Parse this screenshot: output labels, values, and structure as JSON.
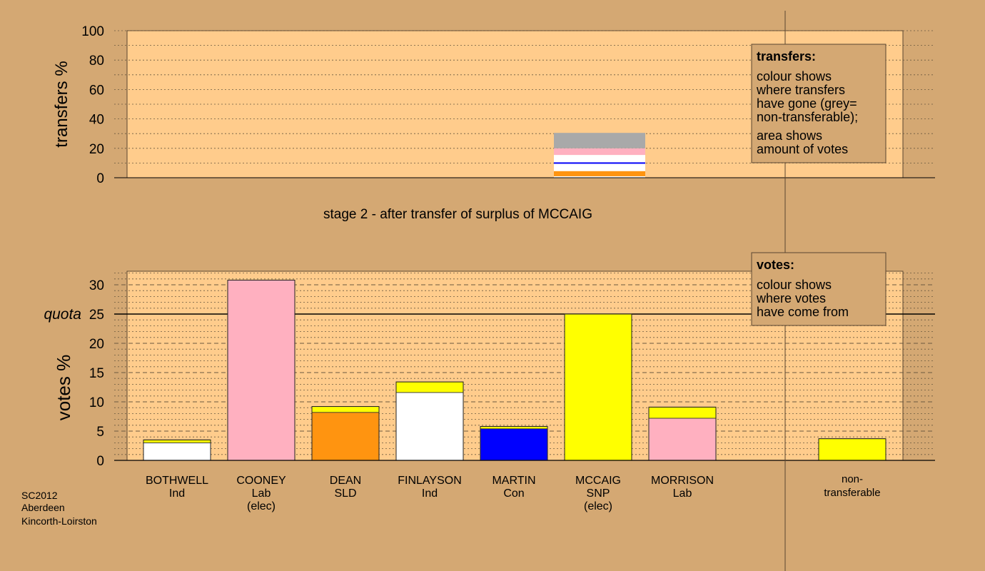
{
  "colors": {
    "background": "#d4a873",
    "plot_bg": "#ffcc8c",
    "grey": "#a9a9a9",
    "pink": "#ffb0c0",
    "white": "#ffffff",
    "blue": "#0000ff",
    "orange": "#ff9410",
    "yellow": "#ffff00"
  },
  "chart_data": [
    {
      "type": "bar",
      "ylabel": "transfers %",
      "ylim": [
        0,
        100
      ],
      "yticks": [
        0,
        20,
        40,
        60,
        80,
        100
      ],
      "stage_label": "stage 2 - after transfer of surplus of MCCAIG",
      "transfer_from": "MCCAIG",
      "stack_order_bottom_up": [
        "white",
        "orange",
        "white",
        "blue",
        "white",
        "pink",
        "grey"
      ],
      "segments": [
        {
          "color": "white",
          "value": 1.0
        },
        {
          "color": "orange",
          "value": 3.5
        },
        {
          "color": "white",
          "value": 5.0
        },
        {
          "color": "blue",
          "value": 1.0
        },
        {
          "color": "white",
          "value": 5.0
        },
        {
          "color": "pink",
          "value": 4.5
        },
        {
          "color": "grey",
          "value": 10.5
        }
      ],
      "legend": {
        "title": "transfers:",
        "lines1": [
          "colour shows",
          "where transfers",
          "have gone (grey=",
          "non-transferable);"
        ],
        "lines2": [
          "area shows",
          "amount of votes"
        ]
      }
    },
    {
      "type": "bar",
      "ylabel": "votes %",
      "ylim": [
        0,
        32
      ],
      "yticks": [
        0,
        5,
        10,
        15,
        20,
        25,
        30
      ],
      "quota": 25,
      "quota_label": "quota",
      "categories": [
        {
          "name": "BOTHWELL",
          "party": "Ind",
          "note": "",
          "segments": [
            {
              "color": "white",
              "value": 3.0
            },
            {
              "color": "yellow",
              "value": 0.5
            }
          ]
        },
        {
          "name": "COONEY",
          "party": "Lab",
          "note": "(elec)",
          "segments": [
            {
              "color": "pink",
              "value": 30.8
            }
          ]
        },
        {
          "name": "DEAN",
          "party": "SLD",
          "note": "",
          "segments": [
            {
              "color": "orange",
              "value": 8.2
            },
            {
              "color": "yellow",
              "value": 1.0
            }
          ]
        },
        {
          "name": "FINLAYSON",
          "party": "Ind",
          "note": "",
          "segments": [
            {
              "color": "white",
              "value": 11.6
            },
            {
              "color": "yellow",
              "value": 1.8
            }
          ]
        },
        {
          "name": "MARTIN",
          "party": "Con",
          "note": "",
          "segments": [
            {
              "color": "blue",
              "value": 5.4
            },
            {
              "color": "yellow",
              "value": 0.4
            }
          ]
        },
        {
          "name": "MCCAIG",
          "party": "SNP",
          "note": "(elec)",
          "segments": [
            {
              "color": "yellow",
              "value": 25.0
            }
          ]
        },
        {
          "name": "MORRISON",
          "party": "Lab",
          "note": "",
          "segments": [
            {
              "color": "pink",
              "value": 7.2
            },
            {
              "color": "yellow",
              "value": 1.9
            }
          ]
        }
      ],
      "nontransferable": {
        "label1": "non-",
        "label2": "transferable",
        "segments": [
          {
            "color": "yellow",
            "value": 3.7
          }
        ]
      },
      "legend": {
        "title": "votes:",
        "lines": [
          "colour shows",
          "where votes",
          "have come from"
        ]
      }
    }
  ],
  "footer": {
    "lines": [
      "SC2012",
      "Aberdeen",
      "Kincorth-Loirston"
    ]
  }
}
